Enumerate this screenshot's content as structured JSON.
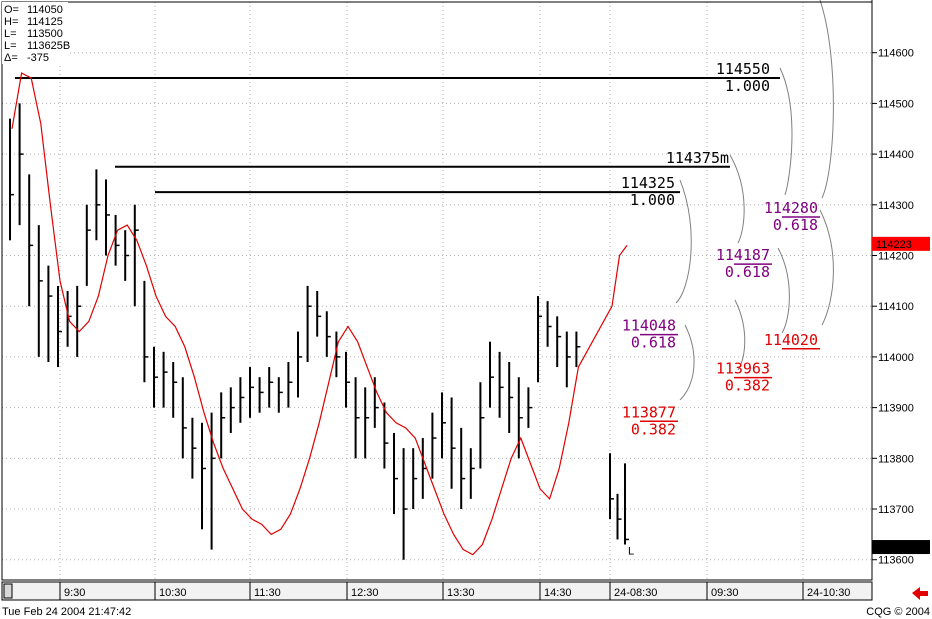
{
  "chart_data": {
    "type": "bar",
    "subtype": "ohlc-intraday",
    "ohlc_box": [
      {
        "label": "O=",
        "value": "114050"
      },
      {
        "label": "H=",
        "value": "114125"
      },
      {
        "label": "L=",
        "value": "113500"
      },
      {
        "label": "L=",
        "value": "113625B"
      },
      {
        "label": "Δ=",
        "value": "-375"
      }
    ],
    "y_ticks": [
      114600,
      114500,
      114400,
      114300,
      114200,
      114100,
      114000,
      113900,
      113800,
      113700,
      113600
    ],
    "ylim": [
      113560,
      114700
    ],
    "y_tick_labels": [
      "114600",
      "114500",
      "114400",
      "114300",
      "114200",
      "114100",
      "114000",
      "113900",
      "113800",
      "113700",
      "113600"
    ],
    "x_tick_labels": [
      "9:30",
      "10:30",
      "11:30",
      "12:30",
      "13:30",
      "14:30",
      "24-08:30",
      "09:30",
      "24-10:30"
    ],
    "last_price_label": "114223",
    "last_close_label": "113625",
    "bars": [
      {
        "h": 114470,
        "l": 114230,
        "c": 114320
      },
      {
        "h": 114500,
        "l": 114260,
        "c": 114400
      },
      {
        "h": 114360,
        "l": 114100,
        "c": 114220
      },
      {
        "h": 114260,
        "l": 114000,
        "c": 114150
      },
      {
        "h": 114180,
        "l": 113990,
        "c": 114120
      },
      {
        "h": 114140,
        "l": 113980,
        "c": 114050
      },
      {
        "h": 114130,
        "l": 114020,
        "c": 114080
      },
      {
        "h": 114140,
        "l": 114000,
        "c": 114100
      },
      {
        "h": 114300,
        "l": 114140,
        "c": 114250
      },
      {
        "h": 114370,
        "l": 114230,
        "c": 114300
      },
      {
        "h": 114350,
        "l": 114200,
        "c": 114280
      },
      {
        "h": 114280,
        "l": 114180,
        "c": 114220
      },
      {
        "h": 114250,
        "l": 114150,
        "c": 114200
      },
      {
        "h": 114300,
        "l": 114100,
        "c": 114250
      },
      {
        "h": 114150,
        "l": 113950,
        "c": 114000
      },
      {
        "h": 114020,
        "l": 113900,
        "c": 113960
      },
      {
        "h": 114010,
        "l": 113900,
        "c": 113970
      },
      {
        "h": 113990,
        "l": 113880,
        "c": 113950
      },
      {
        "h": 113960,
        "l": 113800,
        "c": 113860
      },
      {
        "h": 113880,
        "l": 113760,
        "c": 113820
      },
      {
        "h": 113870,
        "l": 113660,
        "c": 113780
      },
      {
        "h": 113890,
        "l": 113620,
        "c": 113800
      },
      {
        "h": 113930,
        "l": 113800,
        "c": 113880
      },
      {
        "h": 113940,
        "l": 113850,
        "c": 113900
      },
      {
        "h": 113960,
        "l": 113870,
        "c": 113920
      },
      {
        "h": 113980,
        "l": 113880,
        "c": 113940
      },
      {
        "h": 113960,
        "l": 113890,
        "c": 113930
      },
      {
        "h": 113980,
        "l": 113900,
        "c": 113950
      },
      {
        "h": 113960,
        "l": 113890,
        "c": 113930
      },
      {
        "h": 113990,
        "l": 113900,
        "c": 113950
      },
      {
        "h": 114050,
        "l": 113920,
        "c": 114000
      },
      {
        "h": 114140,
        "l": 113990,
        "c": 114100
      },
      {
        "h": 114130,
        "l": 114040,
        "c": 114080
      },
      {
        "h": 114090,
        "l": 114000,
        "c": 114040
      },
      {
        "h": 114050,
        "l": 113960,
        "c": 114000
      },
      {
        "h": 114010,
        "l": 113900,
        "c": 113950
      },
      {
        "h": 113960,
        "l": 113800,
        "c": 113880
      },
      {
        "h": 113940,
        "l": 113800,
        "c": 113880
      },
      {
        "h": 113960,
        "l": 113860,
        "c": 113900
      },
      {
        "h": 113910,
        "l": 113780,
        "c": 113830
      },
      {
        "h": 113850,
        "l": 113690,
        "c": 113760
      },
      {
        "h": 113820,
        "l": 113600,
        "c": 113700
      },
      {
        "h": 113820,
        "l": 113700,
        "c": 113760
      },
      {
        "h": 113840,
        "l": 113720,
        "c": 113780
      },
      {
        "h": 113890,
        "l": 113760,
        "c": 113840
      },
      {
        "h": 113930,
        "l": 113800,
        "c": 113870
      },
      {
        "h": 113920,
        "l": 113740,
        "c": 113820
      },
      {
        "h": 113860,
        "l": 113700,
        "c": 113760
      },
      {
        "h": 113820,
        "l": 113720,
        "c": 113780
      },
      {
        "h": 113950,
        "l": 113780,
        "c": 113880
      },
      {
        "h": 114030,
        "l": 113900,
        "c": 113960
      },
      {
        "h": 114010,
        "l": 113880,
        "c": 113940
      },
      {
        "h": 113990,
        "l": 113850,
        "c": 113920
      },
      {
        "h": 113960,
        "l": 113800,
        "c": 113880
      },
      {
        "h": 113940,
        "l": 113860,
        "c": 113900
      },
      {
        "h": 114120,
        "l": 113950,
        "c": 114080
      },
      {
        "h": 114110,
        "l": 114020,
        "c": 114060
      },
      {
        "h": 114080,
        "l": 113980,
        "c": 114040
      },
      {
        "h": 114050,
        "l": 113940,
        "c": 114000
      },
      {
        "h": 114050,
        "l": 113980,
        "c": 114020
      },
      {
        "h": 113810,
        "l": 113680,
        "c": 113720
      },
      {
        "h": 113730,
        "l": 113640,
        "c": 113680
      },
      {
        "h": 113790,
        "l": 113630,
        "c": 113640
      }
    ],
    "series": [
      {
        "name": "",
        "color": "#e00000",
        "values": [
          114450,
          114560,
          114550,
          114460,
          114300,
          114150,
          114070,
          114050,
          114070,
          114120,
          114200,
          114250,
          114260,
          114230,
          114180,
          114120,
          114080,
          114060,
          114020,
          113960,
          113890,
          113830,
          113780,
          113740,
          113700,
          113680,
          113670,
          113650,
          113660,
          113690,
          113740,
          113800,
          113870,
          113950,
          114030,
          114060,
          114030,
          113980,
          113930,
          113890,
          113870,
          113860,
          113840,
          113790,
          113740,
          113690,
          113650,
          113620,
          113610,
          113630,
          113680,
          113740,
          113800,
          113840,
          113790,
          113740,
          113720,
          113780,
          113870,
          113980,
          114100,
          114200,
          114220
        ]
      }
    ],
    "levels": [
      {
        "value": "114550",
        "sub": "1.000"
      },
      {
        "value": "114375",
        "sub": "m"
      },
      {
        "value": "114325",
        "sub": "1.000"
      }
    ],
    "retracements": [
      {
        "value": "114280",
        "ratio": "0.618",
        "color": "#800080"
      },
      {
        "value": "114187",
        "ratio": "0.618",
        "color": "#800080"
      },
      {
        "value": "114048",
        "ratio": "0.618",
        "color": "#800080"
      },
      {
        "value": "114020",
        "ratio": "",
        "color": "#e00000"
      },
      {
        "value": "113963",
        "ratio": "0.382",
        "color": "#e00000"
      },
      {
        "value": "113877",
        "ratio": "0.382",
        "color": "#e00000"
      }
    ],
    "last_bar_marker": "L",
    "grid": true,
    "colors": {
      "bars": "#000000",
      "line": "#e00000",
      "grid": "#b0b0b0",
      "purple": "#800080",
      "red": "#e00000",
      "last_price_bg": "#ff0000",
      "last_close_bg": "#000000"
    }
  },
  "status": {
    "datetime": "Tue Feb 24 2004 21:47:42",
    "copyright": "CQG © 2004"
  }
}
